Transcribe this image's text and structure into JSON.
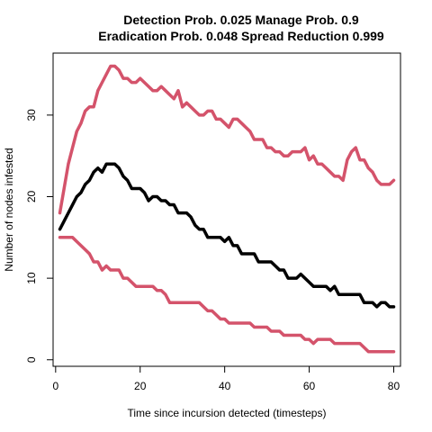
{
  "chart_data": {
    "type": "line",
    "title": "Detection Prob. 0.025 Manage Prob. 0.9",
    "subtitle": "Eradication Prob. 0.048 Spread Reduction 0.999",
    "xlabel": "Time since incursion detected (timesteps)",
    "ylabel": "Number of nodes infested",
    "xlim": [
      -0.6,
      81.6
    ],
    "ylim": [
      -0.8,
      37.6
    ],
    "xticks": [
      0,
      20,
      40,
      60,
      80
    ],
    "yticks": [
      0,
      10,
      20,
      30
    ],
    "grid": false,
    "legend": "none",
    "x": [
      1,
      2,
      3,
      4,
      5,
      6,
      7,
      8,
      9,
      10,
      11,
      12,
      13,
      14,
      15,
      16,
      17,
      18,
      19,
      20,
      21,
      22,
      23,
      24,
      25,
      26,
      27,
      28,
      29,
      30,
      31,
      32,
      33,
      34,
      35,
      36,
      37,
      38,
      39,
      40,
      41,
      42,
      43,
      44,
      45,
      46,
      47,
      48,
      49,
      50,
      51,
      52,
      53,
      54,
      55,
      56,
      57,
      58,
      59,
      60,
      61,
      62,
      63,
      64,
      65,
      66,
      67,
      68,
      69,
      70,
      71,
      72,
      73,
      74,
      75,
      76,
      77,
      78,
      79,
      80
    ],
    "series": [
      {
        "color": "#000000",
        "values": [
          16,
          17,
          18,
          19,
          20,
          20.5,
          21.5,
          22,
          23,
          23.5,
          23,
          24,
          24,
          24,
          23.5,
          22.5,
          22,
          21,
          21,
          21,
          20.5,
          19.5,
          20,
          20,
          19.5,
          19.5,
          19,
          19,
          18,
          18,
          18,
          17.5,
          16.5,
          16,
          16,
          15,
          15,
          15,
          15,
          14.5,
          15,
          14,
          14,
          13,
          13,
          13,
          13,
          12,
          12,
          12,
          12,
          11.5,
          11,
          11,
          10,
          10,
          10,
          10.5,
          10,
          9.5,
          9,
          9,
          9,
          9,
          8.5,
          9,
          8,
          8,
          8,
          8,
          8,
          8,
          7,
          7,
          7,
          6.5,
          7,
          7,
          6.5,
          6.5
        ]
      },
      {
        "color": "#d4536b",
        "values": [
          18,
          21,
          24,
          26,
          28,
          29,
          30.5,
          31,
          31,
          33,
          34,
          35,
          36,
          36,
          35.5,
          34.5,
          34.5,
          34,
          34,
          34.5,
          34,
          33.5,
          33,
          33,
          33.5,
          33,
          32.5,
          32,
          33,
          31,
          31.5,
          31,
          30.5,
          30,
          30,
          30.5,
          30.5,
          29.5,
          29.5,
          29,
          28.5,
          29.5,
          29.5,
          29,
          28.5,
          28,
          27,
          27,
          27,
          26,
          26,
          25.5,
          25.5,
          25,
          25,
          25.5,
          25.5,
          25.5,
          26,
          24.5,
          25,
          24,
          24,
          23.5,
          23,
          22.5,
          22.5,
          22,
          24.5,
          25.5,
          26,
          24.5,
          24.5,
          23.5,
          23,
          22,
          21.5,
          21.5,
          21.5,
          22
        ]
      },
      {
        "color": "#d4536b",
        "values": [
          15,
          15,
          15,
          15,
          14.5,
          14,
          13.5,
          13,
          12,
          12,
          11,
          11.5,
          11,
          11,
          11,
          10,
          10,
          9.5,
          9,
          9,
          9,
          9,
          9,
          8.5,
          8.5,
          8,
          7,
          7,
          7,
          7,
          7,
          7,
          7,
          7,
          6.5,
          6,
          6,
          5.5,
          5,
          5,
          4.5,
          4.5,
          4.5,
          4.5,
          4.5,
          4.5,
          4,
          4,
          4,
          4,
          3.5,
          3.5,
          3.5,
          3,
          3,
          3,
          3,
          3,
          2.5,
          2.5,
          2,
          2.5,
          2.5,
          2.5,
          2.5,
          2,
          2,
          2,
          2,
          2,
          2,
          2,
          1.5,
          1,
          1,
          1,
          1,
          1,
          1,
          1
        ]
      }
    ]
  }
}
